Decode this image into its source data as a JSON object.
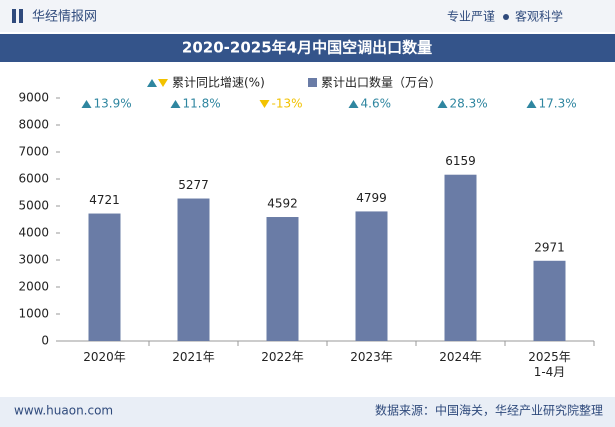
{
  "header": {
    "logo": "华经情报网",
    "slogan": "专业严谨",
    "slogan2": "客观科学"
  },
  "chart_data": {
    "type": "bar",
    "title": "2020-2025年4月中国空调出口数量",
    "categories": [
      "2020年",
      "2021年",
      "2022年",
      "2023年",
      "2024年",
      "2025年\n1-4月"
    ],
    "series": [
      {
        "name": "累计出口数量（万台）",
        "color": "#6a7ca6",
        "values": [
          4721,
          5277,
          4592,
          4799,
          6159,
          2971
        ]
      }
    ],
    "growth": {
      "name": "累计同比增速(%)",
      "values": [
        13.9,
        11.8,
        -13,
        4.6,
        28.3,
        17.3
      ],
      "value_labels": [
        "13.9%",
        "11.8%",
        "-13%",
        "4.6%",
        "28.3%",
        "17.3%"
      ],
      "up_color": "#2f86a0",
      "down_color": "#f2c200"
    },
    "ylim": [
      0,
      9000
    ],
    "yticks": [
      0,
      1000,
      2000,
      3000,
      4000,
      5000,
      6000,
      7000,
      8000,
      9000
    ]
  },
  "footer": {
    "url": "www.huaon.com",
    "source": "数据来源：中国海关，华经产业研究院整理"
  }
}
